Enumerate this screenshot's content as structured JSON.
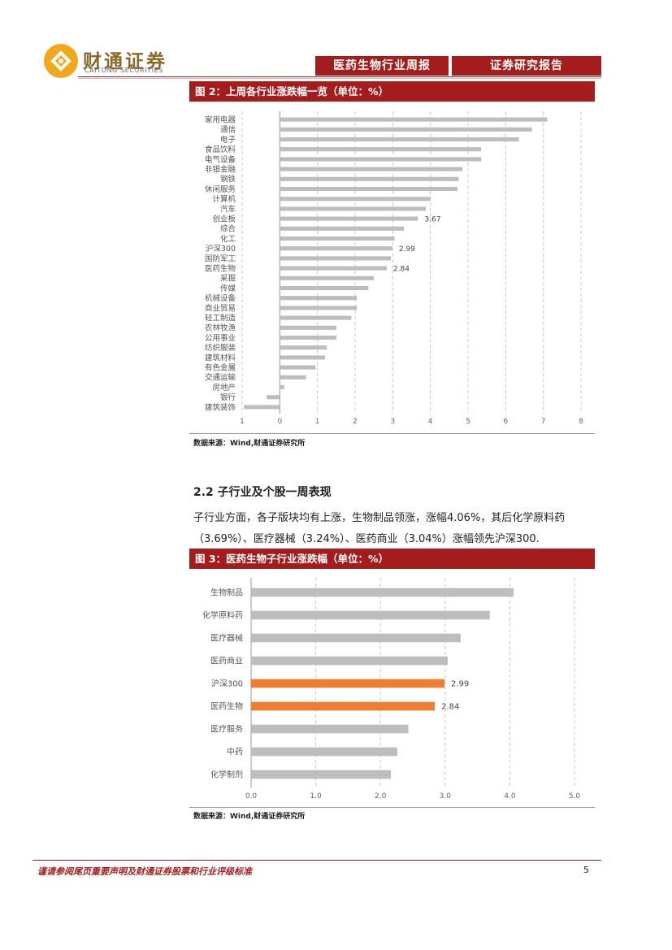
{
  "header": {
    "logo_cn": "财通证券",
    "logo_en": "CAITONG SECURITIES",
    "report_type": "医药生物行业周报",
    "report_class": "证券研究报告"
  },
  "figure2": {
    "title": "图 2：上周各行业涨跌幅一览（单位：%）",
    "source": "数据来源：Wind,财通证券研究所"
  },
  "section": {
    "title": "2.2 子行业及个股一周表现",
    "para_line1": "子行业方面，各子版块均有上涨，生物制品领涨，涨幅4.06%，其后化学原料药",
    "para_line2": "（3.69%）、医疗器械（3.24%）、医药商业（3.04%）涨幅领先沪深300."
  },
  "figure3": {
    "title": "图 3：医药生物子行业涨跌幅（单位：%）",
    "source": "数据来源：Wind,财通证券研究所"
  },
  "footer": {
    "disclaimer": "谨请参阅尾页重要声明及财通证券股票和行业评级标准",
    "page": "5"
  },
  "colors": {
    "brand_red": "#a51c1c",
    "bar_gray": "#bdbdbd",
    "highlight_orange": "#ed7d31"
  },
  "chart_data": [
    {
      "type": "bar",
      "orientation": "horizontal",
      "categories": [
        "家用电器",
        "通信",
        "电子",
        "食品饮料",
        "电气设备",
        "非银金融",
        "钢铁",
        "休闲服务",
        "计算机",
        "汽车",
        "创业板",
        "综合",
        "化工",
        "沪深300",
        "国防军工",
        "医药生物",
        "采掘",
        "传媒",
        "机械设备",
        "商业贸易",
        "轻工制造",
        "农林牧渔",
        "公用事业",
        "纺织服装",
        "建筑材料",
        "有色金属",
        "交通运输",
        "房地产",
        "银行",
        "建筑装饰"
      ],
      "values": [
        7.1,
        6.7,
        6.35,
        5.35,
        5.35,
        4.85,
        4.75,
        4.72,
        4.0,
        3.88,
        3.67,
        3.3,
        3.05,
        2.99,
        2.95,
        2.84,
        2.5,
        2.35,
        2.05,
        2.05,
        1.9,
        1.5,
        1.5,
        1.25,
        1.2,
        0.95,
        0.7,
        0.12,
        -0.35,
        -0.95
      ],
      "data_labels": {
        "创业板": "3.67",
        "沪深300": "2.99",
        "医药生物": "2.84"
      },
      "xlim": [
        -1,
        8
      ],
      "xticks": [
        "1",
        "0",
        "1",
        "2",
        "3",
        "4",
        "5",
        "6",
        "7",
        "8"
      ],
      "grid": "vertical-dashed"
    },
    {
      "type": "bar",
      "orientation": "horizontal",
      "categories": [
        "生物制品",
        "化学原料药",
        "医疗器械",
        "医药商业",
        "沪深300",
        "医药生物",
        "医疗服务",
        "中药",
        "化学制剂"
      ],
      "values": [
        4.06,
        3.69,
        3.24,
        3.04,
        2.99,
        2.84,
        2.43,
        2.26,
        2.16
      ],
      "highlight": [
        "沪深300",
        "医药生物"
      ],
      "data_labels": {
        "沪深300": "2.99",
        "医药生物": "2.84"
      },
      "xlim": [
        0,
        5
      ],
      "xticks": [
        "0.0",
        "1.0",
        "2.0",
        "3.0",
        "4.0",
        "5.0"
      ],
      "grid": "vertical-dashed"
    }
  ]
}
